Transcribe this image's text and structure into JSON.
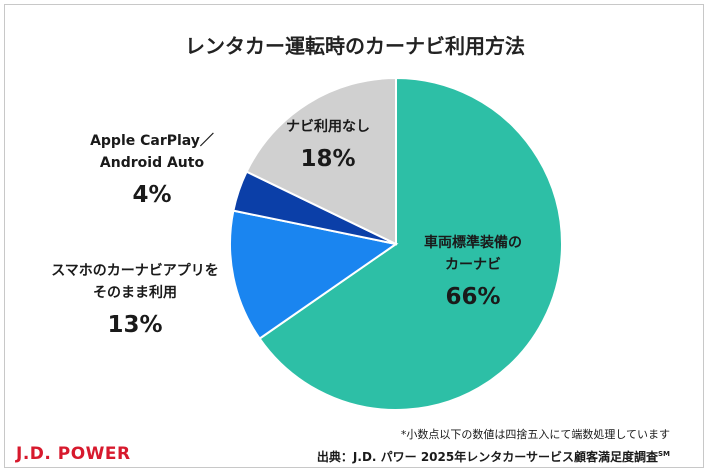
{
  "title": "レンタカー運転時のカーナビ利用方法",
  "chart_data": {
    "type": "pie",
    "title": "レンタカー運転時のカーナビ利用方法",
    "slices": [
      {
        "label_lines": [
          "車両標準装備の",
          "カーナビ"
        ],
        "value": 66,
        "value_label": "66%",
        "color": "#2dbfa6"
      },
      {
        "label_lines": [
          "スマホのカーナビアプリを",
          "そのまま利用"
        ],
        "value": 13,
        "value_label": "13%",
        "color": "#1a85f0"
      },
      {
        "label_lines": [
          "Apple CarPlay／",
          "Android Auto"
        ],
        "value": 4,
        "value_label": "4%",
        "color": "#0b3fa8"
      },
      {
        "label_lines": [
          "ナビ利用なし"
        ],
        "value": 18,
        "value_label": "18%",
        "color": "#d0d0d0"
      }
    ]
  },
  "footnote": "*小数点以下の数値は四捨五入にて端数処理しています",
  "source": {
    "text": "出典：J.D. パワー 2025年レンタカーサービス顧客満足度調査",
    "mark": "SM"
  },
  "logo": "J.D. POWER"
}
